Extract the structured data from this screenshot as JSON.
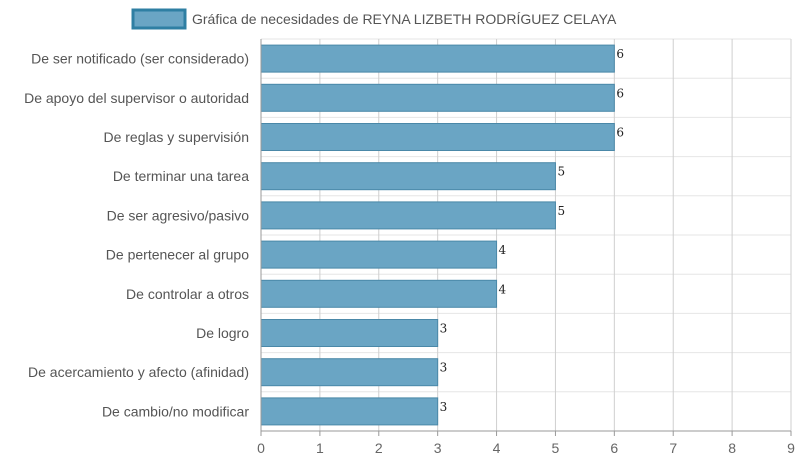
{
  "chart_data": {
    "type": "bar",
    "orientation": "horizontal",
    "categories": [
      "De ser notificado (ser considerado)",
      "De apoyo del supervisor o autoridad",
      "De reglas y supervisión",
      "De terminar una tarea",
      "De ser agresivo/pasivo",
      "De pertenecer al grupo",
      "De controlar a otros",
      "De logro",
      "De acercamiento y afecto (afinidad)",
      "De cambio/no modificar"
    ],
    "series": [
      {
        "name": "Gráfica de necesidades de REYNA LIZBETH  RODRÍGUEZ CELAYA",
        "values": [
          6,
          6,
          6,
          5,
          5,
          4,
          4,
          3,
          3,
          3
        ]
      }
    ],
    "x_ticks": [
      "0",
      "1",
      "2",
      "3",
      "4",
      "5",
      "6",
      "7",
      "8",
      "9"
    ],
    "xlim": [
      0,
      9
    ],
    "grid": true,
    "legend_position": "top",
    "colors": {
      "bar_fill": "#6aa5c4",
      "bar_stroke": "#4a88a8",
      "legend_fill": "#6aa5c4",
      "legend_stroke": "#2f7fa3"
    }
  }
}
